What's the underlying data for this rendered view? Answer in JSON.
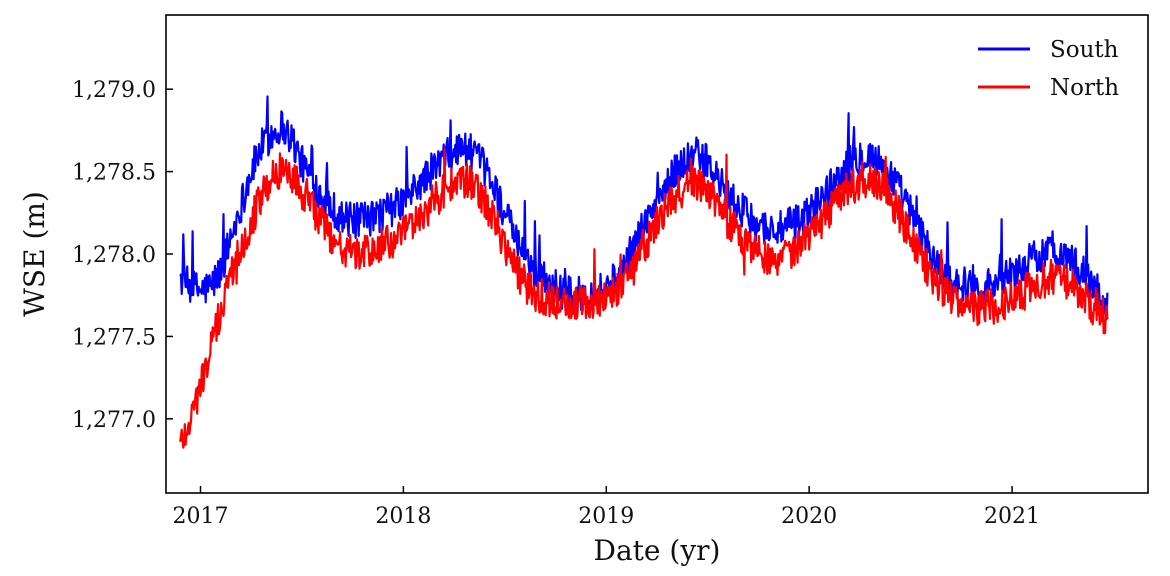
{
  "chart_data": {
    "type": "line",
    "title": "",
    "xlabel": "Date (yr)",
    "ylabel": "WSE (m)",
    "xlim": [
      2016.83,
      2021.67
    ],
    "ylim": [
      1276.55,
      1279.45
    ],
    "xticks": [
      2017,
      2018,
      2019,
      2020,
      2021
    ],
    "xtick_labels": [
      "2017",
      "2018",
      "2019",
      "2020",
      "2021"
    ],
    "yticks": [
      1277.0,
      1277.5,
      1278.0,
      1278.5,
      1279.0
    ],
    "ytick_labels": [
      "1,277.0",
      "1,277.5",
      "1,278.0",
      "1,278.5",
      "1,279.0"
    ],
    "grid": false,
    "legend_position": "top-right",
    "series": [
      {
        "name": "South",
        "color": "#0000ff",
        "x": [
          2016.9,
          2016.95,
          2017.0,
          2017.05,
          2017.1,
          2017.15,
          2017.2,
          2017.25,
          2017.3,
          2017.35,
          2017.4,
          2017.45,
          2017.5,
          2017.55,
          2017.6,
          2017.65,
          2017.7,
          2017.75,
          2017.8,
          2017.85,
          2017.9,
          2017.95,
          2018.0,
          2018.05,
          2018.1,
          2018.15,
          2018.2,
          2018.25,
          2018.3,
          2018.35,
          2018.4,
          2018.45,
          2018.5,
          2018.55,
          2018.6,
          2018.65,
          2018.7,
          2018.75,
          2018.8,
          2018.85,
          2018.9,
          2018.95,
          2019.0,
          2019.05,
          2019.1,
          2019.15,
          2019.2,
          2019.25,
          2019.3,
          2019.35,
          2019.4,
          2019.45,
          2019.5,
          2019.55,
          2019.6,
          2019.65,
          2019.7,
          2019.75,
          2019.8,
          2019.85,
          2019.9,
          2019.95,
          2020.0,
          2020.05,
          2020.1,
          2020.15,
          2020.2,
          2020.25,
          2020.3,
          2020.35,
          2020.4,
          2020.45,
          2020.5,
          2020.55,
          2020.6,
          2020.65,
          2020.7,
          2020.75,
          2020.8,
          2020.85,
          2020.9,
          2020.95,
          2021.0,
          2021.05,
          2021.1,
          2021.15,
          2021.2,
          2021.25,
          2021.3,
          2021.35,
          2021.4,
          2021.45,
          2021.47
        ],
        "y": [
          1277.85,
          1277.8,
          1277.78,
          1277.8,
          1277.9,
          1278.1,
          1278.3,
          1278.5,
          1278.65,
          1278.72,
          1278.78,
          1278.7,
          1278.55,
          1278.45,
          1278.35,
          1278.28,
          1278.22,
          1278.2,
          1278.2,
          1278.22,
          1278.25,
          1278.28,
          1278.32,
          1278.38,
          1278.45,
          1278.52,
          1278.58,
          1278.62,
          1278.65,
          1278.6,
          1278.52,
          1278.4,
          1278.25,
          1278.1,
          1277.98,
          1277.9,
          1277.85,
          1277.8,
          1277.76,
          1277.75,
          1277.76,
          1277.78,
          1277.8,
          1277.85,
          1277.95,
          1278.08,
          1278.2,
          1278.32,
          1278.42,
          1278.52,
          1278.58,
          1278.6,
          1278.55,
          1278.45,
          1278.35,
          1278.28,
          1278.22,
          1278.18,
          1278.15,
          1278.15,
          1278.17,
          1278.2,
          1278.25,
          1278.32,
          1278.4,
          1278.48,
          1278.55,
          1278.6,
          1278.6,
          1278.55,
          1278.48,
          1278.38,
          1278.25,
          1278.12,
          1278.0,
          1277.9,
          1277.85,
          1277.82,
          1277.8,
          1277.8,
          1277.82,
          1277.85,
          1277.88,
          1277.92,
          1277.97,
          1278.0,
          1278.02,
          1278.0,
          1277.95,
          1277.88,
          1277.8,
          1277.72,
          1277.68
        ]
      },
      {
        "name": "North",
        "color": "#ff0000",
        "x": [
          2016.9,
          2016.95,
          2017.0,
          2017.05,
          2017.1,
          2017.15,
          2017.2,
          2017.25,
          2017.3,
          2017.35,
          2017.4,
          2017.45,
          2017.5,
          2017.55,
          2017.6,
          2017.65,
          2017.7,
          2017.75,
          2017.8,
          2017.85,
          2017.9,
          2017.95,
          2018.0,
          2018.05,
          2018.1,
          2018.15,
          2018.2,
          2018.25,
          2018.3,
          2018.35,
          2018.4,
          2018.45,
          2018.5,
          2018.55,
          2018.6,
          2018.65,
          2018.7,
          2018.75,
          2018.8,
          2018.85,
          2018.9,
          2018.95,
          2019.0,
          2019.05,
          2019.1,
          2019.15,
          2019.2,
          2019.25,
          2019.3,
          2019.35,
          2019.4,
          2019.45,
          2019.5,
          2019.55,
          2019.6,
          2019.65,
          2019.7,
          2019.75,
          2019.8,
          2019.85,
          2019.9,
          2019.95,
          2020.0,
          2020.05,
          2020.1,
          2020.15,
          2020.2,
          2020.25,
          2020.3,
          2020.35,
          2020.4,
          2020.45,
          2020.5,
          2020.55,
          2020.6,
          2020.65,
          2020.7,
          2020.75,
          2020.8,
          2020.85,
          2020.9,
          2020.95,
          2021.0,
          2021.05,
          2021.1,
          2021.15,
          2021.2,
          2021.25,
          2021.3,
          2021.35,
          2021.4,
          2021.45,
          2021.47
        ],
        "y": [
          1276.85,
          1277.0,
          1277.2,
          1277.42,
          1277.65,
          1277.88,
          1278.05,
          1278.2,
          1278.35,
          1278.45,
          1278.52,
          1278.48,
          1278.38,
          1278.28,
          1278.18,
          1278.1,
          1278.04,
          1278.0,
          1278.0,
          1278.02,
          1278.05,
          1278.08,
          1278.12,
          1278.18,
          1278.25,
          1278.32,
          1278.38,
          1278.42,
          1278.45,
          1278.4,
          1278.32,
          1278.2,
          1278.05,
          1277.92,
          1277.82,
          1277.76,
          1277.73,
          1277.71,
          1277.7,
          1277.7,
          1277.7,
          1277.72,
          1277.74,
          1277.78,
          1277.86,
          1277.98,
          1278.08,
          1278.18,
          1278.28,
          1278.36,
          1278.42,
          1278.44,
          1278.4,
          1278.3,
          1278.2,
          1278.12,
          1278.06,
          1278.02,
          1277.98,
          1277.98,
          1278.0,
          1278.04,
          1278.1,
          1278.18,
          1278.26,
          1278.34,
          1278.4,
          1278.44,
          1278.44,
          1278.4,
          1278.33,
          1278.23,
          1278.1,
          1277.98,
          1277.88,
          1277.8,
          1277.74,
          1277.7,
          1277.68,
          1277.67,
          1277.68,
          1277.7,
          1277.73,
          1277.76,
          1277.8,
          1277.84,
          1277.86,
          1277.84,
          1277.8,
          1277.74,
          1277.68,
          1277.62,
          1277.6
        ]
      }
    ]
  }
}
